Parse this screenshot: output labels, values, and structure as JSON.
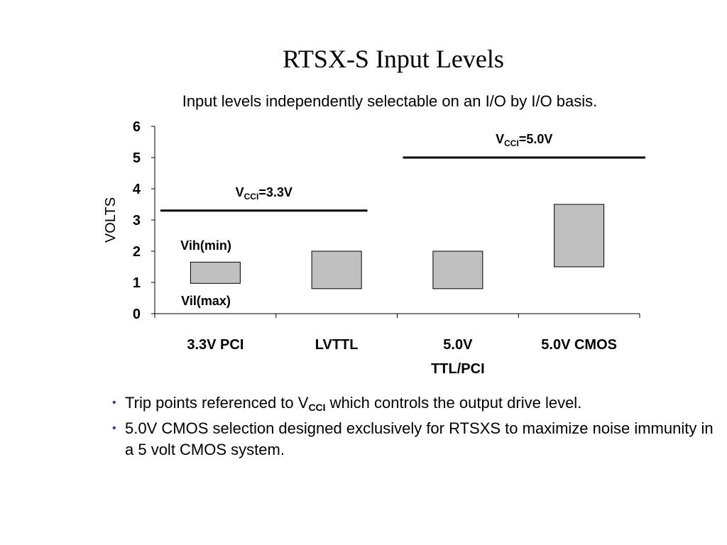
{
  "slide": {
    "title": "RTSX-S Input Levels",
    "subtitle": "Input levels independently selectable on an I/O by I/O basis."
  },
  "chart_data": {
    "type": "bar",
    "title": "",
    "xlabel": "",
    "ylabel": "VOLTS",
    "ylim": [
      0,
      6
    ],
    "yticks": [
      "0",
      "1",
      "2",
      "3",
      "4",
      "5",
      "6"
    ],
    "grid": false,
    "categories": [
      {
        "lines": [
          "3.3V PCI"
        ]
      },
      {
        "lines": [
          "LVTTL"
        ]
      },
      {
        "lines": [
          "5.0V",
          "TTL/PCI"
        ]
      },
      {
        "lines": [
          "5.0V CMOS"
        ]
      }
    ],
    "series": [
      {
        "low": [
          0.97,
          0.8,
          0.8,
          1.5
        ],
        "high": [
          1.65,
          2.0,
          2.0,
          3.5
        ]
      }
    ],
    "bar_color": "#c0c0c0",
    "reference_lines": [
      {
        "value": 3.3,
        "from_category": 0,
        "to_category": 1,
        "label_main": "V",
        "label_sub": "CCI",
        "label_rest": "=3.3V"
      },
      {
        "value": 5.0,
        "from_category": 2,
        "to_category": 3,
        "label_main": "V",
        "label_sub": "CCI",
        "label_rest": "=5.0V"
      }
    ],
    "annotations": [
      "Vih(min)",
      "Vil(max)"
    ]
  },
  "bullets": [
    {
      "pre": "Trip points referenced to V",
      "sub": "CCI",
      "post": " which controls the output drive level."
    },
    {
      "pre": "5.0V CMOS selection designed exclusively for RTSXS to maximize noise immunity in a 5 volt CMOS system.",
      "sub": "",
      "post": ""
    }
  ],
  "colors": {
    "bullet": "#3333cc",
    "bar_fill": "#c0c0c0",
    "text": "#000000"
  }
}
